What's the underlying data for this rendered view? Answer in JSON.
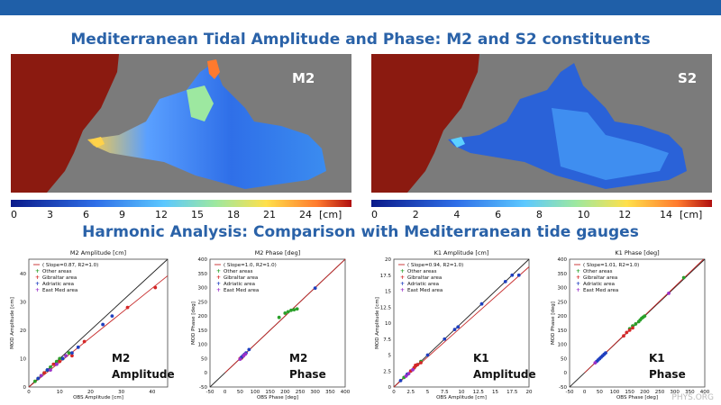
{
  "title_top": "Mediterranean Tidal Amplitude and Phase: M2 and S2 constituents",
  "title_mid": "Harmonic Analysis: Comparison with Mediterranean tide gauges",
  "maps": [
    {
      "label": "M2",
      "colorbar": {
        "ticks": [
          "0",
          "3",
          "6",
          "9",
          "12",
          "15",
          "18",
          "21",
          "24"
        ],
        "unit": "[cm]"
      }
    },
    {
      "label": "S2",
      "colorbar": {
        "ticks": [
          "0",
          "2",
          "4",
          "6",
          "8",
          "10",
          "12",
          "14"
        ],
        "unit": "[cm]"
      }
    }
  ],
  "colors": {
    "accent": "#2a62a8",
    "land": "#7b7b7b",
    "atlantic": "#8b1a10",
    "reg_line": "#c62828",
    "one_to_one": "#222222",
    "other": "#2aa02a",
    "gibraltar": "#d62728",
    "adriatic": "#1f3fbf",
    "eastmed": "#9b30c8"
  },
  "legend_labels": [
    "Other areas",
    "Gibraltar area",
    "Adriatic area",
    "East Med area"
  ],
  "watermark": "PHYS.ORG",
  "chart_data": [
    {
      "type": "scatter",
      "title": "M2 Amplitude [cm]",
      "xlabel": "OBS Amplitude [cm]",
      "ylabel": "MOD Amplitude [cm]",
      "fit_label": "( Slope=0.87, R2=1.0)",
      "slope": 0.87,
      "inset": [
        "M2",
        "Amplitude"
      ],
      "xlim": [
        0,
        45
      ],
      "ylim": [
        0,
        45
      ],
      "xticks": [
        0,
        10,
        20,
        30,
        40
      ],
      "yticks": [
        0,
        10,
        20,
        30,
        40
      ],
      "series": [
        {
          "name": "Other areas",
          "points": [
            [
              2,
              2
            ],
            [
              3,
              3
            ],
            [
              4,
              4
            ],
            [
              5,
              5
            ],
            [
              6,
              6
            ],
            [
              7,
              7
            ],
            [
              8,
              8
            ],
            [
              9,
              9
            ],
            [
              10,
              10
            ],
            [
              11,
              10
            ],
            [
              12,
              11
            ],
            [
              13,
              12
            ]
          ]
        },
        {
          "name": "Gibraltar area",
          "points": [
            [
              5,
              5
            ],
            [
              8,
              8
            ],
            [
              10,
              9
            ],
            [
              14,
              11
            ],
            [
              18,
              16
            ],
            [
              32,
              28
            ],
            [
              41,
              35
            ]
          ]
        },
        {
          "name": "Adriatic area",
          "points": [
            [
              3,
              3
            ],
            [
              6,
              6
            ],
            [
              9,
              8
            ],
            [
              11,
              10
            ],
            [
              14,
              12
            ],
            [
              16,
              14
            ],
            [
              24,
              22
            ],
            [
              27,
              25
            ]
          ]
        },
        {
          "name": "East Med area",
          "points": [
            [
              4,
              4
            ],
            [
              7,
              6
            ],
            [
              9,
              8
            ],
            [
              12,
              11
            ]
          ]
        }
      ]
    },
    {
      "type": "scatter",
      "title": "M2 Phase [deg]",
      "xlabel": "OBS Phase [deg]",
      "ylabel": "MOD Phase [deg]",
      "fit_label": "( Slope=1.0, R2=1.0)",
      "slope": 1.0,
      "inset": [
        "M2",
        "Phase"
      ],
      "xlim": [
        -50,
        400
      ],
      "ylim": [
        -50,
        400
      ],
      "xticks": [
        -50,
        0,
        50,
        100,
        150,
        200,
        250,
        300,
        350,
        400
      ],
      "yticks": [
        -50,
        0,
        50,
        100,
        150,
        200,
        250,
        300,
        350,
        400
      ],
      "series": [
        {
          "name": "Other areas",
          "points": [
            [
              180,
              195
            ],
            [
              200,
              210
            ],
            [
              210,
              215
            ],
            [
              220,
              220
            ],
            [
              230,
              222
            ],
            [
              240,
              225
            ]
          ]
        },
        {
          "name": "Gibraltar area",
          "points": [
            [
              50,
              50
            ],
            [
              55,
              52
            ],
            [
              60,
              58
            ]
          ]
        },
        {
          "name": "Adriatic area",
          "points": [
            [
              55,
              55
            ],
            [
              60,
              60
            ],
            [
              65,
              65
            ],
            [
              70,
              70
            ],
            [
              80,
              82
            ],
            [
              300,
              298
            ]
          ]
        },
        {
          "name": "East Med area",
          "points": [
            [
              50,
              48
            ],
            [
              62,
              60
            ],
            [
              68,
              66
            ]
          ]
        }
      ]
    },
    {
      "type": "scatter",
      "title": "K1 Amplitude [cm]",
      "xlabel": "OBS Amplitude [cm]",
      "ylabel": "MOD Amplitude [cm]",
      "fit_label": "( Slope=0.94, R2=1.0)",
      "slope": 0.94,
      "inset": [
        "K1",
        "Amplitude"
      ],
      "xlim": [
        0,
        20
      ],
      "ylim": [
        0,
        20
      ],
      "xticks": [
        0.0,
        2.5,
        5.0,
        7.5,
        10.0,
        12.5,
        15.0,
        17.5,
        20.0
      ],
      "yticks": [
        0.0,
        2.5,
        5.0,
        7.5,
        10.0,
        12.5,
        15.0,
        17.5,
        20.0
      ],
      "series": [
        {
          "name": "Other areas",
          "points": [
            [
              1.5,
              1.5
            ],
            [
              2,
              2
            ],
            [
              2.5,
              2.5
            ],
            [
              3,
              3
            ],
            [
              3.5,
              3.5
            ],
            [
              4,
              4
            ]
          ]
        },
        {
          "name": "Gibraltar area",
          "points": [
            [
              2.5,
              2.5
            ],
            [
              3,
              3
            ],
            [
              3.5,
              3.5
            ],
            [
              4,
              3.8
            ],
            [
              3.2,
              3.4
            ]
          ]
        },
        {
          "name": "Adriatic area",
          "points": [
            [
              1,
              1
            ],
            [
              2,
              2
            ],
            [
              5,
              5
            ],
            [
              7.5,
              7.5
            ],
            [
              9,
              9
            ],
            [
              9.5,
              9.4
            ],
            [
              13,
              13
            ],
            [
              16.5,
              16.5
            ],
            [
              17.5,
              17.5
            ],
            [
              18.5,
              17.5
            ]
          ]
        },
        {
          "name": "East Med area",
          "points": [
            [
              1.8,
              1.7
            ],
            [
              2.2,
              2.1
            ],
            [
              2.8,
              2.7
            ]
          ]
        }
      ]
    },
    {
      "type": "scatter",
      "title": "K1 Phase [deg]",
      "xlabel": "OBS Phase [deg]",
      "ylabel": "MOD Phase [deg]",
      "fit_label": "( Slope=1.01, R2=1.0)",
      "slope": 1.01,
      "inset": [
        "K1",
        "Phase"
      ],
      "xlim": [
        -50,
        400
      ],
      "ylim": [
        -50,
        400
      ],
      "xticks": [
        -50,
        0,
        50,
        100,
        150,
        200,
        250,
        300,
        350,
        400
      ],
      "yticks": [
        -50,
        0,
        50,
        100,
        150,
        200,
        250,
        300,
        350,
        400
      ],
      "series": [
        {
          "name": "Other areas",
          "points": [
            [
              150,
              155
            ],
            [
              160,
              165
            ],
            [
              170,
              172
            ],
            [
              180,
              180
            ],
            [
              185,
              186
            ],
            [
              190,
              192
            ],
            [
              195,
              196
            ],
            [
              200,
              200
            ],
            [
              330,
              335
            ]
          ]
        },
        {
          "name": "Gibraltar area",
          "points": [
            [
              130,
              130
            ],
            [
              140,
              142
            ],
            [
              150,
              150
            ],
            [
              160,
              158
            ]
          ]
        },
        {
          "name": "Adriatic area",
          "points": [
            [
              40,
              40
            ],
            [
              45,
              45
            ],
            [
              50,
              50
            ],
            [
              55,
              55
            ],
            [
              60,
              60
            ],
            [
              65,
              65
            ],
            [
              70,
              70
            ]
          ]
        },
        {
          "name": "East Med area",
          "points": [
            [
              35,
              35
            ],
            [
              280,
              280
            ]
          ]
        }
      ]
    }
  ]
}
